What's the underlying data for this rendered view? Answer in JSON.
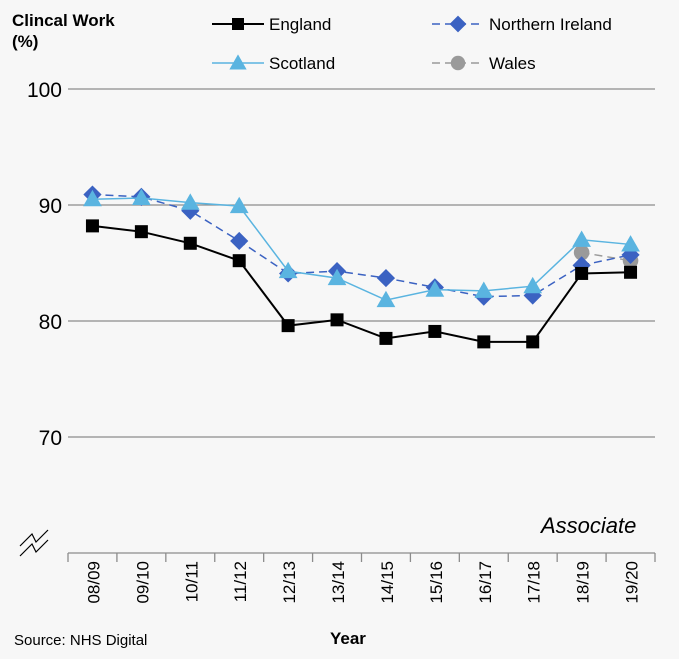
{
  "chart_data": {
    "type": "line",
    "ylabel": "Clincal Work\n(%)",
    "ylabel_lines": [
      "Clincal Work",
      "(%)"
    ],
    "xlabel": "Year",
    "source": "Source: NHS Digital",
    "annotation": "Associate",
    "categories": [
      "08/09",
      "09/10",
      "10/11",
      "11/12",
      "12/13",
      "13/14",
      "14/15",
      "15/16",
      "16/17",
      "17/18",
      "18/19",
      "19/20"
    ],
    "yticks": [
      70,
      80,
      90,
      100
    ],
    "ylim": [
      60,
      100
    ],
    "axis_break": true,
    "grid": true,
    "legend_position": "top",
    "series": [
      {
        "name": "England",
        "color": "#000000",
        "marker": "square",
        "dash": "solid",
        "values": [
          88.2,
          87.7,
          86.7,
          85.2,
          79.6,
          80.1,
          78.5,
          79.1,
          78.2,
          78.2,
          84.1,
          84.2
        ]
      },
      {
        "name": "Northern Ireland",
        "color": "#3b62c2",
        "marker": "diamond",
        "dash": "dashed",
        "values": [
          90.9,
          90.7,
          89.5,
          86.9,
          84.1,
          84.3,
          83.7,
          82.9,
          82.1,
          82.2,
          84.8,
          85.7
        ]
      },
      {
        "name": "Scotland",
        "color": "#5ab4e0",
        "marker": "triangle",
        "dash": "solid",
        "values": [
          90.5,
          90.6,
          90.2,
          89.9,
          84.3,
          83.7,
          81.8,
          82.7,
          82.6,
          83.0,
          87.0,
          86.6
        ]
      },
      {
        "name": "Wales",
        "color": "#9a9a9a",
        "marker": "circle",
        "dash": "dashed",
        "values": [
          null,
          null,
          null,
          null,
          null,
          null,
          null,
          null,
          null,
          null,
          85.9,
          85.2
        ]
      }
    ]
  }
}
